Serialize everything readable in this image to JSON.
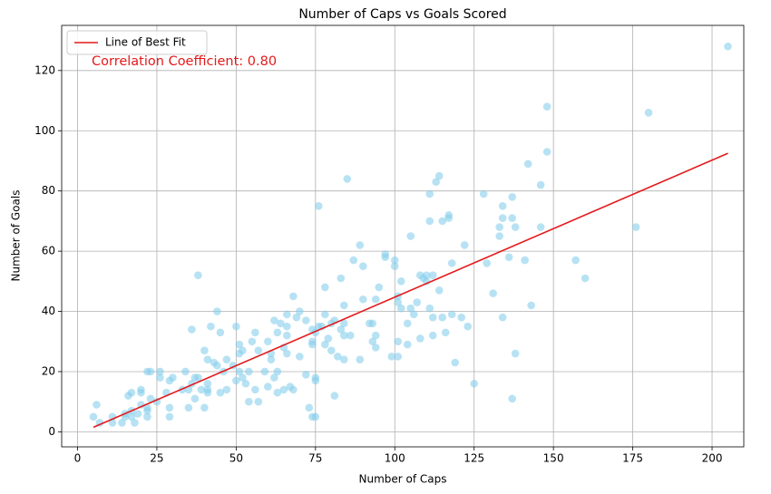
{
  "chart_data": {
    "type": "scatter",
    "title": "Number of Caps vs Goals Scored",
    "x_label": "Number of Caps",
    "y_label": "Number of Goals",
    "color": "#87ceeb",
    "grid": true,
    "legend": "upper left",
    "annotation": "Correlation Coefficient: 0.80",
    "fit": {
      "name": "Line of Best Fit",
      "color": "#e41a1c",
      "x": [
        5,
        205
      ],
      "values": [
        1.5,
        92.5
      ]
    },
    "xlim": [
      -5,
      210
    ],
    "ylim": [
      -5,
      135
    ],
    "xticks": [
      0,
      25,
      50,
      75,
      100,
      125,
      150,
      175,
      200
    ],
    "yticks": [
      0,
      20,
      40,
      60,
      80,
      100,
      120
    ],
    "x": [
      5,
      6,
      7,
      11,
      11,
      14,
      15,
      15,
      16,
      17,
      17,
      17,
      18,
      19,
      20,
      20,
      20,
      22,
      22,
      22,
      22,
      23,
      23,
      25,
      26,
      26,
      28,
      29,
      29,
      29,
      30,
      33,
      34,
      35,
      35,
      36,
      36,
      37,
      37,
      38,
      38,
      39,
      40,
      40,
      41,
      41,
      41,
      41,
      42,
      43,
      44,
      44,
      45,
      45,
      46,
      47,
      47,
      49,
      50,
      50,
      51,
      51,
      51,
      52,
      52,
      53,
      54,
      54,
      55,
      56,
      56,
      57,
      57,
      59,
      60,
      60,
      61,
      61,
      62,
      62,
      63,
      63,
      63,
      64,
      65,
      65,
      66,
      66,
      66,
      66,
      67,
      68,
      68,
      69,
      70,
      70,
      72,
      72,
      73,
      74,
      74,
      74,
      74,
      75,
      75,
      75,
      75,
      76,
      76,
      77,
      78,
      78,
      78,
      79,
      80,
      80,
      81,
      81,
      82,
      83,
      83,
      84,
      84,
      84,
      84,
      85,
      86,
      87,
      89,
      89,
      90,
      90,
      92,
      93,
      93,
      94,
      94,
      94,
      95,
      97,
      97,
      99,
      100,
      100,
      101,
      101,
      101,
      101,
      102,
      102,
      104,
      104,
      105,
      105,
      106,
      107,
      108,
      108,
      109,
      110,
      110,
      111,
      111,
      111,
      112,
      112,
      112,
      113,
      114,
      114,
      115,
      115,
      116,
      117,
      117,
      118,
      118,
      119,
      121,
      122,
      123,
      125,
      128,
      129,
      131,
      133,
      133,
      134,
      134,
      134,
      136,
      137,
      137,
      137,
      138,
      138,
      141,
      142,
      143,
      146,
      146,
      148,
      148,
      157,
      160,
      176,
      180,
      205
    ],
    "values": [
      5,
      9,
      3,
      3,
      5,
      3,
      5,
      6,
      12,
      13,
      7,
      5,
      3,
      6,
      13,
      14,
      9,
      20,
      8,
      7,
      5,
      11,
      20,
      10,
      20,
      18,
      13,
      8,
      5,
      17,
      18,
      14,
      20,
      14,
      8,
      34,
      16,
      18,
      11,
      52,
      18,
      14,
      27,
      8,
      24,
      16,
      14,
      13,
      35,
      23,
      40,
      22,
      33,
      13,
      20,
      24,
      14,
      22,
      35,
      17,
      29,
      26,
      20,
      27,
      18,
      16,
      20,
      10,
      30,
      33,
      14,
      27,
      10,
      20,
      15,
      30,
      26,
      24,
      37,
      18,
      13,
      20,
      33,
      36,
      28,
      14,
      39,
      35,
      32,
      26,
      15,
      45,
      14,
      38,
      40,
      25,
      37,
      19,
      8,
      5,
      34,
      30,
      29,
      33,
      18,
      17,
      5,
      75,
      35,
      35,
      39,
      48,
      29,
      31,
      27,
      36,
      12,
      37,
      25,
      34,
      51,
      42,
      36,
      32,
      24,
      84,
      32,
      57,
      62,
      24,
      44,
      55,
      36,
      30,
      36,
      28,
      32,
      44,
      48,
      58,
      59,
      25,
      57,
      55,
      45,
      30,
      43,
      25,
      50,
      41,
      36,
      29,
      65,
      41,
      39,
      43,
      52,
      31,
      51,
      52,
      50,
      70,
      79,
      41,
      52,
      38,
      32,
      83,
      85,
      47,
      70,
      38,
      33,
      72,
      71,
      56,
      39,
      23,
      38,
      62,
      35,
      16,
      79,
      56,
      46,
      65,
      68,
      75,
      71,
      38,
      58,
      71,
      78,
      11,
      68,
      26,
      57,
      89,
      42,
      82,
      68,
      108,
      93,
      57,
      51,
      68,
      106,
      128
    ]
  }
}
